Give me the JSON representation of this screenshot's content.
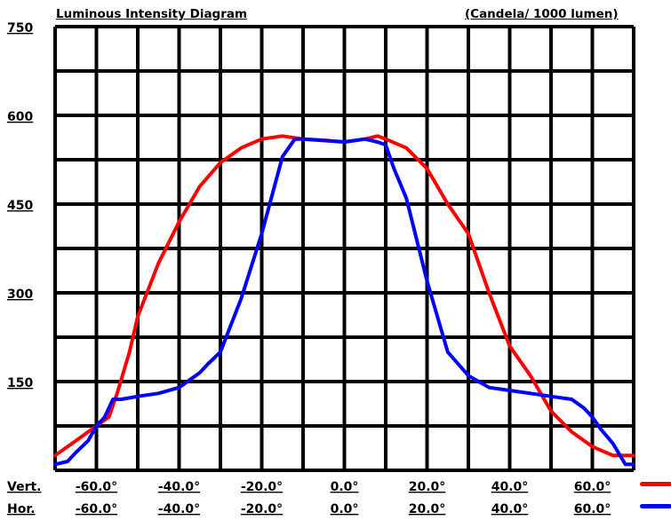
{
  "title": "Luminous Intensity Diagram",
  "unit_label": "(Candela/ 1000 lumen)",
  "row_labels": {
    "vert": "Vert.",
    "hor": "Hor."
  },
  "colors": {
    "vert": "#ff0000",
    "hor": "#0000ff",
    "grid": "#000000"
  },
  "chart_data": {
    "type": "line",
    "title": "Luminous Intensity Diagram",
    "ylabel": "(Candela/ 1000 lumen)",
    "xlim": [
      -70,
      70
    ],
    "ylim": [
      0,
      750
    ],
    "yticks": [
      150,
      300,
      450,
      600,
      750
    ],
    "ytick_labels": [
      "150",
      "300",
      "450",
      "600",
      "750"
    ],
    "xticks": [
      -60,
      -40,
      -20,
      0,
      20,
      40,
      60
    ],
    "xtick_labels": [
      "-60.0°",
      "-40.0°",
      "-20.0°",
      "0.0°",
      "20.0°",
      "40.0°",
      "60.0°"
    ],
    "grid": true,
    "series": [
      {
        "key": "vert",
        "x": [
          -70,
          -65,
          -60,
          -57,
          -55,
          -52,
          -50,
          -45,
          -40,
          -35,
          -30,
          -25,
          -20,
          -15,
          -10,
          -5,
          0,
          5,
          8,
          10,
          15,
          20,
          25,
          30,
          35,
          40,
          45,
          50,
          55,
          60,
          65,
          70
        ],
        "y": [
          25,
          50,
          75,
          90,
          130,
          200,
          260,
          350,
          420,
          480,
          520,
          545,
          560,
          565,
          560,
          558,
          555,
          560,
          565,
          560,
          545,
          510,
          450,
          400,
          300,
          210,
          160,
          100,
          65,
          40,
          25,
          25
        ]
      },
      {
        "key": "hor",
        "x": [
          -70,
          -67,
          -65,
          -62,
          -60,
          -58,
          -56,
          -54,
          -50,
          -45,
          -40,
          -35,
          -33,
          -30,
          -25,
          -20,
          -15,
          -12,
          -10,
          0,
          5,
          8,
          10,
          12,
          15,
          20,
          25,
          30,
          35,
          40,
          45,
          50,
          55,
          58,
          60,
          62,
          65,
          68,
          70
        ],
        "y": [
          10,
          15,
          30,
          50,
          75,
          90,
          120,
          120,
          125,
          130,
          140,
          165,
          180,
          200,
          290,
          400,
          530,
          560,
          560,
          555,
          560,
          555,
          550,
          510,
          460,
          320,
          200,
          160,
          140,
          135,
          130,
          125,
          120,
          105,
          90,
          70,
          45,
          10,
          10
        ]
      }
    ]
  }
}
